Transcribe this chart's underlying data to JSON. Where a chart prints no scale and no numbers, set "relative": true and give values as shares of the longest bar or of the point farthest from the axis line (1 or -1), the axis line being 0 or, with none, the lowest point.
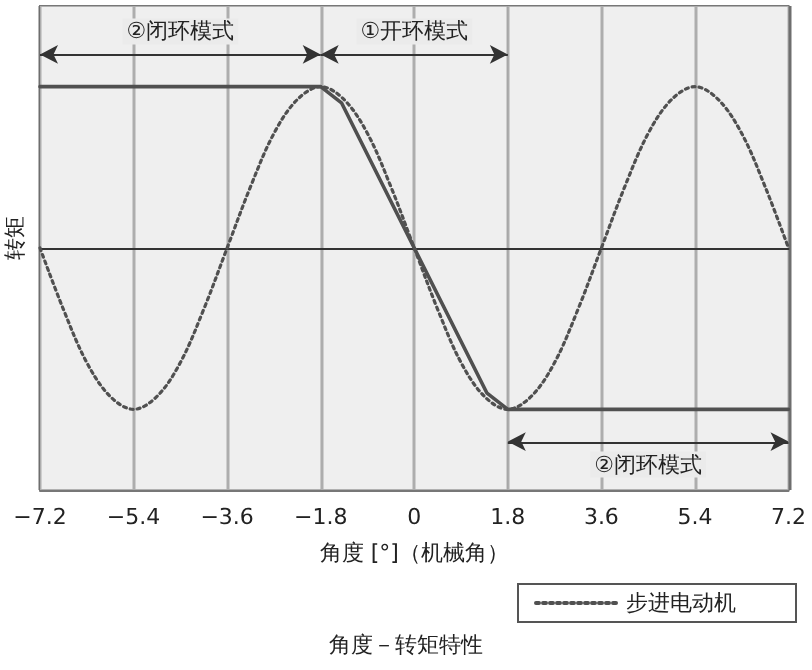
{
  "chart_data": {
    "type": "line",
    "title": "角度－转矩特性",
    "xlabel": "角度 [°]（机械角）",
    "ylabel": "转矩",
    "relative": true,
    "xlim": [
      -7.2,
      7.2
    ],
    "xticks": [
      -7.2,
      -5.4,
      -3.6,
      -1.8,
      0,
      1.8,
      3.6,
      5.4,
      7.2
    ],
    "grid": "x",
    "legend": "bottom right",
    "marker": "none",
    "series": [
      {
        "color": "#505050",
        "line_style": "solid",
        "x": [
          -7.2,
          -1.8,
          -1.4,
          1.4,
          1.8,
          7.2
        ],
        "values": [
          1,
          1,
          0.9,
          -0.9,
          -1,
          -1
        ]
      },
      {
        "name": "步进电动机",
        "color": "#505050",
        "line_style": "dotted",
        "x": [
          -7.2,
          -6.75,
          -6.3,
          -5.85,
          -5.4,
          -4.95,
          -4.5,
          -4.05,
          -3.6,
          -3.15,
          -2.7,
          -2.25,
          -1.8,
          -1.35,
          -0.9,
          -0.45,
          0,
          0.45,
          0.9,
          1.35,
          1.8,
          2.25,
          2.7,
          3.15,
          3.6,
          4.05,
          4.5,
          4.95,
          5.4,
          5.85,
          6.3,
          6.75,
          7.2
        ],
        "values": [
          0,
          -0.38,
          -0.71,
          -0.92,
          -1,
          -0.92,
          -0.71,
          -0.38,
          0,
          0.38,
          0.71,
          0.92,
          1,
          0.92,
          0.71,
          0.38,
          0,
          -0.38,
          -0.71,
          -0.92,
          -1,
          -0.92,
          -0.71,
          -0.38,
          0,
          0.38,
          0.71,
          0.92,
          1,
          0.92,
          0.71,
          0.38,
          0
        ]
      }
    ],
    "bands": [
      {
        "axis": "x",
        "from": -7.2,
        "to": -1.8,
        "label": "②闭环模式",
        "color": "#ebebeb"
      },
      {
        "axis": "x",
        "from": -1.8,
        "to": 1.8,
        "label": "①开环模式",
        "color": "#ebebeb"
      },
      {
        "axis": "x",
        "from": 1.8,
        "to": 7.2,
        "label": "②闭环模式",
        "color": "#ebebeb"
      }
    ]
  }
}
